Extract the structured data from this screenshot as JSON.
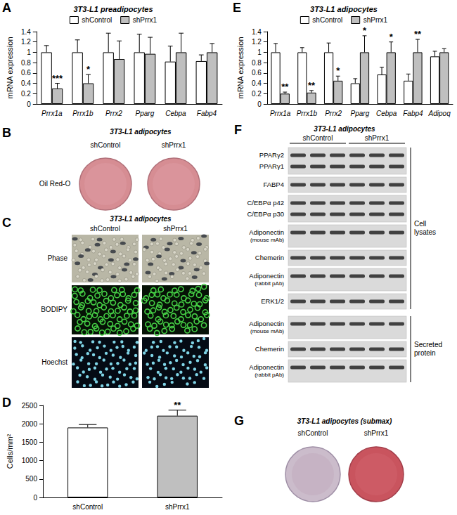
{
  "chart_data": [
    {
      "panel_label": "A",
      "type": "bar",
      "title": "3T3-L1 preadipocytes",
      "y_label": "mRNA expression",
      "categories": [
        "Prrx1a",
        "Prrx1b",
        "Prrx2",
        "Pparg",
        "Cebpa",
        "Fabp4"
      ],
      "series": [
        {
          "name": "shControl",
          "color": "#ffffff",
          "values": [
            1,
            1,
            1,
            1,
            0.82,
            0.83
          ],
          "errors": [
            0.13,
            0.24,
            0.37,
            0.35,
            0.3,
            0.12
          ]
        },
        {
          "name": "shPrrx1",
          "color": "#bfbfbf",
          "values": [
            0.3,
            0.4,
            0.87,
            0.97,
            1,
            1
          ],
          "errors": [
            0.1,
            0.17,
            0.35,
            0.32,
            0.37,
            0.17
          ],
          "annotations": [
            "***",
            "*",
            null,
            null,
            null,
            null
          ]
        }
      ],
      "ylim": [
        0,
        1.4
      ],
      "yticks": [
        0,
        0.2,
        0.4,
        0.6,
        0.8,
        1,
        1.2,
        1.4
      ],
      "grid": false,
      "legend": "top"
    },
    {
      "panel_label": "D",
      "type": "bar",
      "y_label": "Cells/mm²",
      "categories": [
        "shControl",
        "shPrrx1"
      ],
      "values": [
        1900,
        2220
      ],
      "errors": [
        80,
        150
      ],
      "annotations": [
        null,
        "**"
      ],
      "colors": [
        "#ffffff",
        "#bfbfbf"
      ],
      "ylim": [
        0,
        2500
      ],
      "yticks": [
        0,
        500,
        1000,
        1500,
        2000,
        2500
      ],
      "grid": false
    },
    {
      "panel_label": "E",
      "type": "bar",
      "title": "3T3-L1 adipocytes",
      "y_label": "mRNA expression",
      "categories": [
        "Prrx1a",
        "Prrx1b",
        "Prrx2",
        "Pparg",
        "Cebpa",
        "Fabp4",
        "Adipoq"
      ],
      "series": [
        {
          "name": "shControl",
          "color": "#ffffff",
          "values": [
            1,
            1,
            1,
            0.4,
            0.57,
            0.45,
            0.92
          ],
          "errors": [
            0.17,
            0.09,
            0.18,
            0.09,
            0.14,
            0.13,
            0.1
          ]
        },
        {
          "name": "shPrrx1",
          "color": "#bfbfbf",
          "values": [
            0.2,
            0.22,
            0.45,
            1,
            1,
            1,
            1
          ],
          "errors": [
            0.03,
            0.04,
            0.09,
            0.32,
            0.2,
            0.25,
            0.07
          ],
          "annotations": [
            "**",
            "**",
            "*",
            "*",
            "*",
            "**",
            null
          ]
        }
      ],
      "ylim": [
        0,
        1.4
      ],
      "yticks": [
        0,
        0.2,
        0.4,
        0.6,
        0.8,
        1,
        1.2,
        1.4
      ],
      "grid": false,
      "legend": "top"
    }
  ],
  "image_panels": {
    "oil_red_o": {
      "panel_label": "B",
      "title": "3T3-L1 adipocytes",
      "columns": [
        "shControl",
        "shPrrx1"
      ],
      "rows": [
        "Oil Red-O"
      ]
    },
    "microscopy": {
      "panel_label": "C",
      "title": "3T3-L1 adipocytes",
      "columns": [
        "shControl",
        "shPrrx1"
      ],
      "rows": [
        "Phase",
        "BODIPY",
        "Hoechst"
      ]
    },
    "western_blot": {
      "panel_label": "F",
      "title": "3T3-L1 adipocytes",
      "columns": [
        "shControl",
        "shPrrx1"
      ],
      "groups": [
        {
          "label": "Cell lysates",
          "rows": [
            {
              "lines": [
                "PPARγ2",
                "PPARγ1"
              ]
            },
            {
              "lines": [
                "FABP4"
              ]
            },
            {
              "lines": [
                "C/EBPα p42",
                "C/EBPα p30"
              ]
            },
            {
              "lines": [
                "Adiponectin"
              ],
              "note": "(mouse mAb)"
            },
            {
              "lines": [
                "Chemerin"
              ]
            },
            {
              "lines": [
                "Adiponectin"
              ],
              "note": "(rabbit pAb)"
            },
            {
              "lines": [
                "ERK1/2"
              ]
            }
          ]
        },
        {
          "label": "Secreted protein",
          "rows": [
            {
              "lines": [
                "Adiponectin"
              ],
              "note": "(mouse mAb)"
            },
            {
              "lines": [
                "Chemerin"
              ]
            },
            {
              "lines": [
                "Adiponectin"
              ],
              "note": "(rabbit pAb)"
            }
          ]
        }
      ]
    },
    "oil_red_o_submax": {
      "panel_label": "G",
      "title": "3T3-L1 adipocytes (submax)",
      "columns": [
        "shControl",
        "shPrrx1"
      ]
    }
  }
}
